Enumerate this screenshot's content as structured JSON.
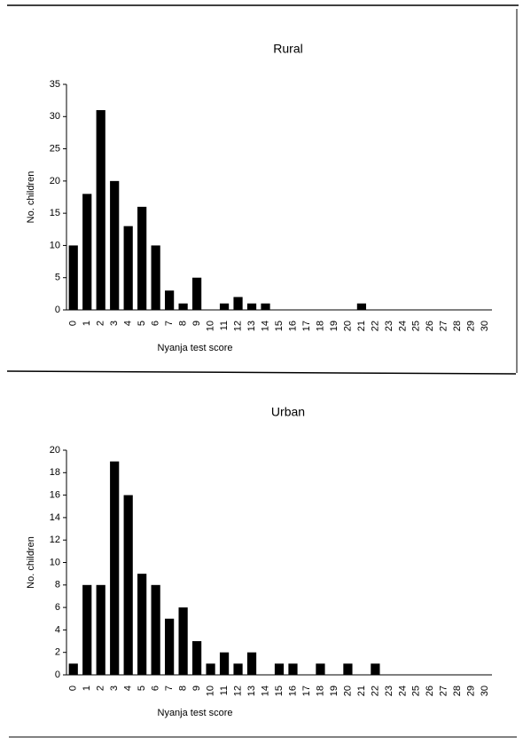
{
  "chart_data": [
    {
      "type": "bar",
      "title": "Rural",
      "x_label": "Nyanja test score",
      "y_label": "No. children",
      "categories": [
        "0",
        "1",
        "2",
        "3",
        "4",
        "5",
        "6",
        "7",
        "8",
        "9",
        "10",
        "11",
        "12",
        "13",
        "14",
        "15",
        "16",
        "17",
        "18",
        "19",
        "20",
        "21",
        "22",
        "23",
        "24",
        "25",
        "26",
        "27",
        "28",
        "29",
        "30"
      ],
      "values": [
        10,
        18,
        31,
        20,
        13,
        16,
        10,
        3,
        1,
        5,
        0,
        1,
        2,
        1,
        1,
        0,
        0,
        0,
        0,
        0,
        0,
        1,
        0,
        0,
        0,
        0,
        0,
        0,
        0,
        0,
        0
      ],
      "color": "#000000",
      "ylim": [
        0,
        35
      ],
      "yticks": [
        0,
        5,
        10,
        15,
        20,
        25,
        30,
        35
      ]
    },
    {
      "type": "bar",
      "title": "Urban",
      "x_label": "Nyanja test score",
      "y_label": "No. children",
      "categories": [
        "0",
        "1",
        "2",
        "3",
        "4",
        "5",
        "6",
        "7",
        "8",
        "9",
        "10",
        "11",
        "12",
        "13",
        "14",
        "15",
        "16",
        "17",
        "18",
        "19",
        "20",
        "21",
        "22",
        "23",
        "24",
        "25",
        "26",
        "27",
        "28",
        "29",
        "30"
      ],
      "values": [
        1,
        8,
        8,
        19,
        16,
        9,
        8,
        5,
        6,
        3,
        1,
        2,
        1,
        2,
        0,
        1,
        1,
        0,
        1,
        0,
        1,
        0,
        1,
        0,
        0,
        0,
        0,
        0,
        0,
        0,
        0
      ],
      "color": "#000000",
      "ylim": [
        0,
        20
      ],
      "yticks": [
        0,
        2,
        4,
        6,
        8,
        10,
        12,
        14,
        16,
        18,
        20
      ]
    }
  ]
}
